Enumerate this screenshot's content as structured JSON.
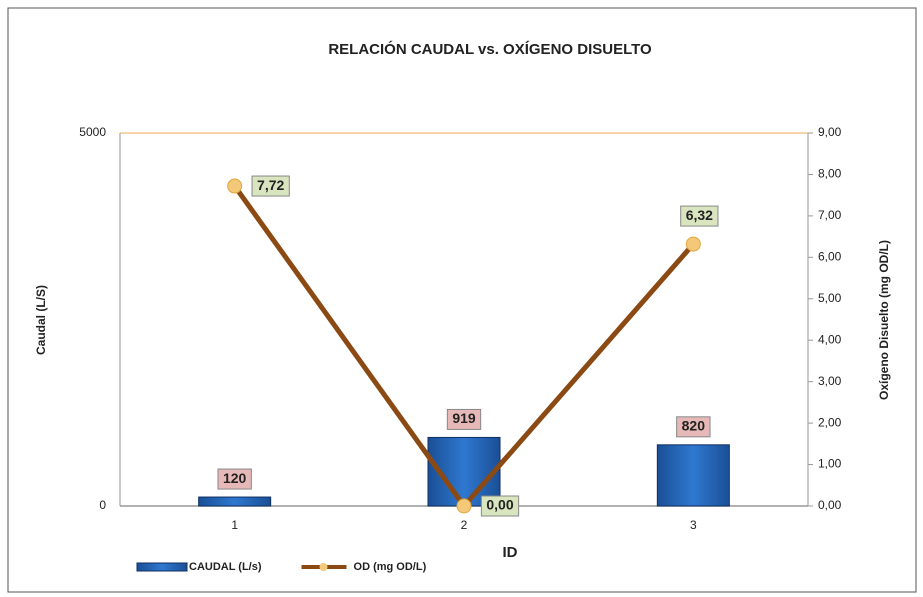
{
  "chart_data": {
    "type": "bar",
    "title": "RELACIÓN CAUDAL  vs. OXÍGENO DISUELTO",
    "x_label": "ID",
    "y_label": "Caudal (L/S)",
    "y2_label": "Oxígeno Disuelto (mg OD/L)",
    "categories": [
      "1",
      "2",
      "3"
    ],
    "series": [
      {
        "name": "CAUDAL (L/s)",
        "type": "bar",
        "color": "#1f5fb4",
        "values": [
          120,
          919,
          820
        ]
      },
      {
        "name": "OD (mg OD/L)",
        "type": "line",
        "axis": "y2",
        "color": "#8b4a14",
        "values": [
          7.72,
          0,
          6.32
        ],
        "value_labels": [
          "7,72",
          "0,00",
          "6,32"
        ]
      }
    ],
    "ylim": [
      0,
      5000
    ],
    "yticks": [
      0,
      5000
    ],
    "y2lim": [
      0,
      9
    ],
    "y2ticks": [
      {
        "value": 0,
        "label": "0,00"
      },
      {
        "value": 1,
        "label": "1,00"
      },
      {
        "value": 2,
        "label": "2,00"
      },
      {
        "value": 3,
        "label": "3,00"
      },
      {
        "value": 4,
        "label": "4,00"
      },
      {
        "value": 5,
        "label": "5,00"
      },
      {
        "value": 6,
        "label": "6,00"
      },
      {
        "value": 7,
        "label": "7,00"
      },
      {
        "value": 8,
        "label": "8,00"
      },
      {
        "value": 9,
        "label": "9,00"
      }
    ],
    "grid": true,
    "legend": "bottom-left"
  }
}
